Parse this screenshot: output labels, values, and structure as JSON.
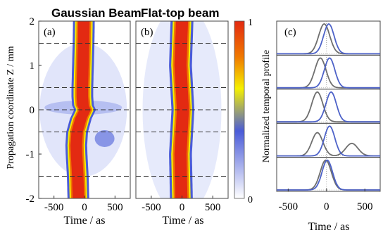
{
  "chart_data": [
    {
      "type": "heatmap",
      "panel_label": "(a)",
      "title": "Gaussian Beam",
      "xlabel": "Time / as",
      "ylabel": "Propagation coordinate Z / mm",
      "xlim": [
        -750,
        750
      ],
      "ylim": [
        -2,
        2
      ],
      "xticks": [
        -500,
        0,
        500
      ],
      "xtick_labels": [
        "-500",
        "0",
        "500"
      ],
      "yticks": [
        -2,
        -1,
        0,
        1,
        2
      ],
      "ytick_labels": [
        "-2",
        "-1",
        "0",
        "1",
        "2"
      ],
      "dashed_lines_z": [
        1.5,
        0.5,
        0,
        -0.5,
        -1.5
      ],
      "pulse_center_vs_z": {
        "z": [
          2,
          1.5,
          1,
          0.5,
          0.3,
          0.1,
          0,
          -0.2,
          -0.5,
          -0.8,
          -1,
          -1.5,
          -2
        ],
        "t_center": [
          -10,
          -15,
          -25,
          -35,
          -35,
          -25,
          10,
          -60,
          -120,
          -135,
          -130,
          -110,
          -100
        ]
      },
      "pulse_fwhm_as": 230
    },
    {
      "type": "heatmap",
      "panel_label": "(b)",
      "title": "Flat-top beam",
      "xlabel": "Time / as",
      "xlim": [
        -750,
        750
      ],
      "ylim": [
        -2,
        2
      ],
      "xticks": [
        -500,
        0,
        500
      ],
      "xtick_labels": [
        "-500",
        "0",
        "500"
      ],
      "dashed_lines_z": [
        1.5,
        0.5,
        0,
        -0.5,
        -1.5
      ],
      "pulse_center_vs_z": {
        "z": [
          2,
          1,
          0,
          -1,
          -2
        ],
        "t_center": [
          0,
          -25,
          15,
          -25,
          -10
        ]
      },
      "pulse_fwhm_as": 240
    },
    {
      "type": "colorbar",
      "range": [
        0,
        1
      ],
      "tick_labels": [
        "1",
        "0"
      ],
      "colormap": [
        "#ffffff",
        "#4a5bd8",
        "#f5f000",
        "#f07800",
        "#e32a12"
      ]
    },
    {
      "type": "line",
      "panel_label": "(c)",
      "ylabel": "Normalized temporal profile",
      "xlabel": "Time / as",
      "xlim": [
        -650,
        700
      ],
      "xticks": [
        -500,
        0,
        500
      ],
      "xtick_labels": [
        "-500",
        "0",
        "500"
      ],
      "rows_z_mm": [
        1.5,
        0.5,
        0,
        -0.5,
        -1.5
      ],
      "series": [
        {
          "color": "#6e6e6e",
          "centers": [
            -30,
            -80,
            -120,
            -120,
            -10
          ],
          "width": 170,
          "secondary_bump": [
            null,
            null,
            null,
            {
              "center": 330,
              "amp": 0.42
            },
            null
          ]
        },
        {
          "color": "#4d62c8",
          "centers": [
            30,
            40,
            60,
            40,
            10
          ],
          "width": 160,
          "secondary_bump": [
            null,
            null,
            null,
            null,
            null
          ]
        }
      ]
    }
  ],
  "colors": {
    "gaussian_curve": "#6e6e6e",
    "flattop_curve": "#4d62c8",
    "panel_border": "#444444"
  }
}
